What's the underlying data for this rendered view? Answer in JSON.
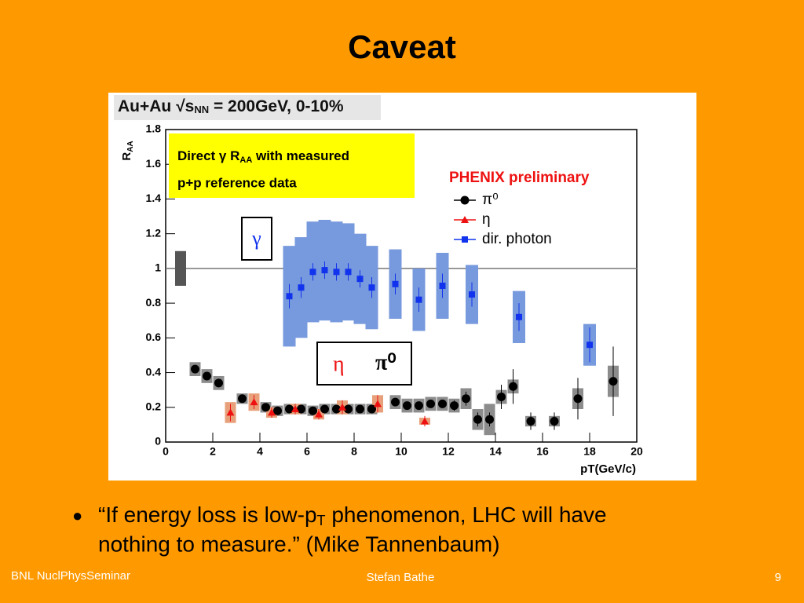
{
  "title": "Caveat",
  "bullet": {
    "part1": "“If energy loss is low-p",
    "sub": "T",
    "part2": " phenomenon, LHC will have",
    "part3": "nothing to measure.” (Mike Tannenbaum)"
  },
  "footer": {
    "left": "BNL NuclPhysSeminar",
    "center": "Stefan Bathe",
    "right": "9"
  },
  "chart_data": {
    "type": "scatter",
    "header": {
      "system": "Au+Au",
      "sqrt": "√s",
      "sub": "NN",
      "rest": "= 200GeV, 0-10%"
    },
    "ylabel": "R",
    "ylabel_sub": "AA",
    "xlabel": "pT(GeV/c)",
    "annotation": {
      "line1a": "Direct γ R",
      "line1sub": "AA",
      "line1b": " with measured",
      "line2": "p+p reference data"
    },
    "experiment": "PHENIX preliminary",
    "tags": {
      "gamma": "γ",
      "eta": "η",
      "pi0": "π⁰"
    },
    "xlim": [
      0,
      20
    ],
    "ylim": [
      0,
      1.8
    ],
    "xticks": [
      0,
      2,
      4,
      6,
      8,
      10,
      12,
      14,
      16,
      18,
      20
    ],
    "yticks": [
      0,
      0.2,
      0.4,
      0.6,
      0.8,
      1,
      1.2,
      1.4,
      1.6,
      1.8
    ],
    "reference_line": 1,
    "normalization_uncertainty": 0.1,
    "series": [
      {
        "name": "π⁰",
        "color": "#000000",
        "box_color": "#8c8c8c",
        "marker": "circle",
        "x": [
          1.25,
          1.75,
          2.25,
          3.25,
          4.25,
          4.75,
          5.25,
          5.75,
          6.25,
          6.75,
          7.25,
          7.75,
          8.25,
          8.75,
          9.75,
          10.25,
          10.75,
          11.25,
          11.75,
          12.25,
          12.75,
          13.25,
          13.75,
          14.25,
          14.75,
          15.5,
          16.5,
          17.5,
          19
        ],
        "values": [
          0.42,
          0.38,
          0.34,
          0.25,
          0.2,
          0.18,
          0.19,
          0.19,
          0.18,
          0.19,
          0.19,
          0.19,
          0.19,
          0.19,
          0.23,
          0.21,
          0.21,
          0.22,
          0.22,
          0.21,
          0.25,
          0.13,
          0.13,
          0.26,
          0.32,
          0.12,
          0.12,
          0.25,
          0.35
        ],
        "errors": [
          0.02,
          0.02,
          0.02,
          0.02,
          0.02,
          0.02,
          0.02,
          0.02,
          0.02,
          0.02,
          0.02,
          0.02,
          0.02,
          0.02,
          0.02,
          0.02,
          0.02,
          0.02,
          0.02,
          0.03,
          0.04,
          0.04,
          0.04,
          0.07,
          0.1,
          0.05,
          0.05,
          0.12,
          0.2
        ],
        "sys": [
          0.04,
          0.04,
          0.04,
          0.03,
          0.03,
          0.03,
          0.03,
          0.03,
          0.03,
          0.03,
          0.03,
          0.03,
          0.03,
          0.03,
          0.04,
          0.04,
          0.04,
          0.04,
          0.04,
          0.04,
          0.06,
          0.06,
          0.09,
          0.04,
          0.04,
          0.03,
          0.03,
          0.06,
          0.09
        ]
      },
      {
        "name": "η",
        "color": "#ee1111",
        "box_color": "#e8a07a",
        "marker": "triangle",
        "x": [
          2.75,
          3.75,
          4.5,
          5.5,
          6.5,
          7.5,
          9,
          11
        ],
        "values": [
          0.17,
          0.23,
          0.17,
          0.19,
          0.16,
          0.2,
          0.22,
          0.12
        ],
        "errors": [
          0.05,
          0.04,
          0.03,
          0.03,
          0.03,
          0.04,
          0.05,
          0.03
        ],
        "sys": [
          0.06,
          0.05,
          0.03,
          0.03,
          0.03,
          0.04,
          0.05,
          0.02
        ]
      },
      {
        "name": "dir. photon",
        "color": "#1133ee",
        "box_color": "#7799dd",
        "marker": "square",
        "x": [
          5.25,
          5.75,
          6.25,
          6.75,
          7.25,
          7.75,
          8.25,
          8.75,
          9.75,
          10.75,
          11.75,
          13,
          15,
          18
        ],
        "values": [
          0.84,
          0.89,
          0.98,
          0.99,
          0.98,
          0.98,
          0.94,
          0.89,
          0.91,
          0.82,
          0.9,
          0.85,
          0.72,
          0.56
        ],
        "errors": [
          0.07,
          0.06,
          0.05,
          0.05,
          0.05,
          0.05,
          0.05,
          0.06,
          0.06,
          0.07,
          0.07,
          0.07,
          0.08,
          0.1
        ],
        "sys": [
          0.29,
          0.29,
          0.29,
          0.29,
          0.29,
          0.28,
          0.26,
          0.24,
          0.2,
          0.18,
          0.19,
          0.17,
          0.15,
          0.12
        ]
      }
    ]
  }
}
